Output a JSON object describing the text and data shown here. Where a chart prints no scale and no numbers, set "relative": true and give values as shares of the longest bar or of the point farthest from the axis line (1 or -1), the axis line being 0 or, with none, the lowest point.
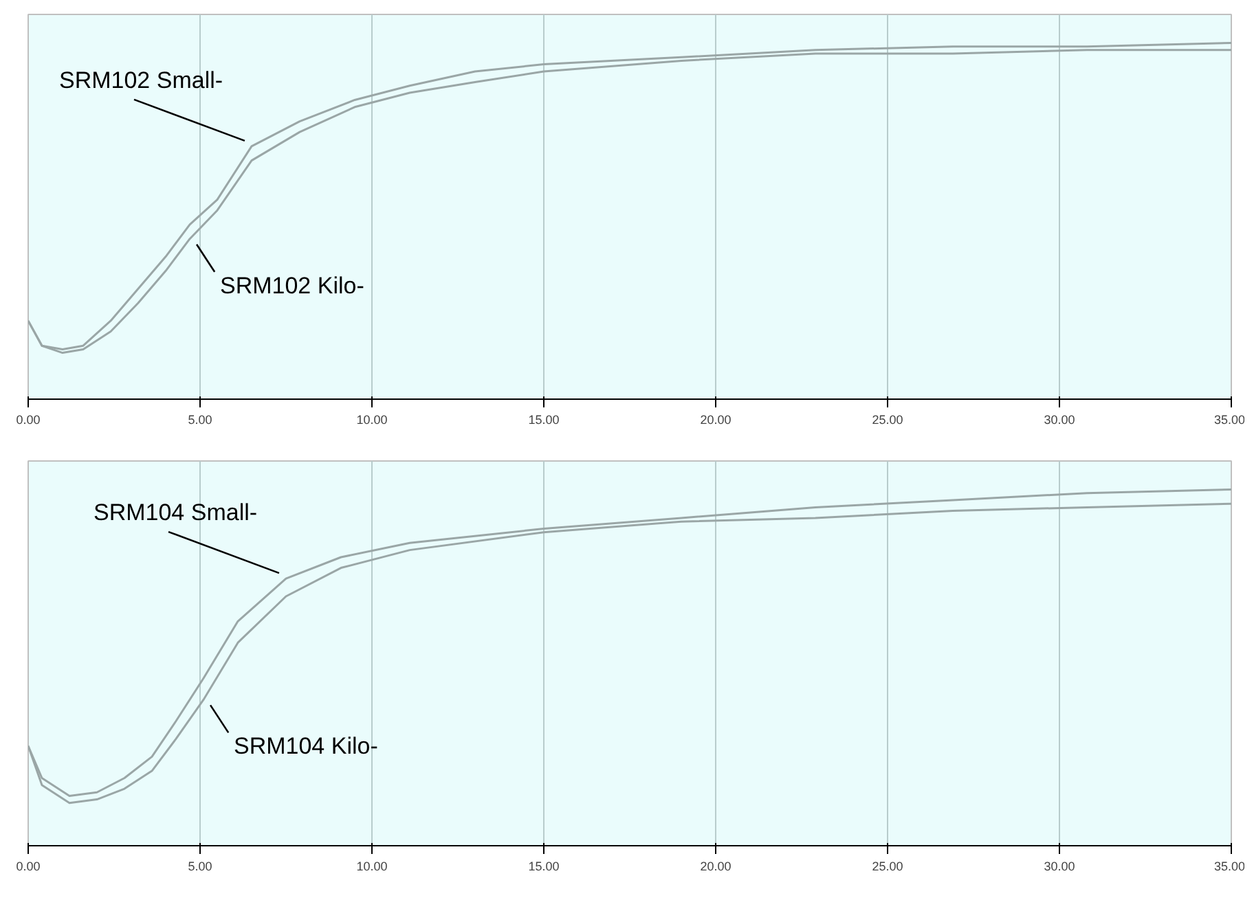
{
  "chart_data": [
    {
      "type": "line",
      "relative": true,
      "grid": "x",
      "marker": "none",
      "line_style": "solid",
      "xlim": [
        0,
        35
      ],
      "xticks": [
        {
          "value": 0,
          "label": "0.00"
        },
        {
          "value": 5,
          "label": "5.00"
        },
        {
          "value": 10,
          "label": "10.00"
        },
        {
          "value": 15,
          "label": "15.00"
        },
        {
          "value": 20,
          "label": "20.00"
        },
        {
          "value": 25,
          "label": "25.00"
        },
        {
          "value": 30,
          "label": "30.00"
        },
        {
          "value": 35,
          "label": "35.00"
        }
      ],
      "x": [
        0,
        0.4,
        1.0,
        1.6,
        2.4,
        3.2,
        4.0,
        4.7,
        5.5,
        6.5,
        7.9,
        9.5,
        11.1,
        13.0,
        15.0,
        19.0,
        22.9,
        26.9,
        30.8,
        35
      ],
      "series": [
        {
          "name": "SRM102 Small-",
          "color": "#9aa6a6",
          "values": [
            0.22,
            0.15,
            0.14,
            0.15,
            0.22,
            0.31,
            0.4,
            0.49,
            0.56,
            0.71,
            0.78,
            0.84,
            0.88,
            0.92,
            0.94,
            0.96,
            0.98,
            0.99,
            0.99,
            1.0
          ]
        },
        {
          "name": "SRM102 Kilo-",
          "color": "#9aa6a6",
          "values": [
            0.22,
            0.15,
            0.13,
            0.14,
            0.19,
            0.27,
            0.36,
            0.45,
            0.53,
            0.67,
            0.75,
            0.82,
            0.86,
            0.89,
            0.92,
            0.95,
            0.97,
            0.97,
            0.98,
            0.98
          ]
        }
      ]
    },
    {
      "type": "line",
      "relative": true,
      "grid": "x",
      "marker": "none",
      "line_style": "solid",
      "xlim": [
        0,
        35
      ],
      "xticks": [
        {
          "value": 0,
          "label": "0.00"
        },
        {
          "value": 5,
          "label": "5.00"
        },
        {
          "value": 10,
          "label": "10.00"
        },
        {
          "value": 15,
          "label": "15.00"
        },
        {
          "value": 20,
          "label": "20.00"
        },
        {
          "value": 25,
          "label": "25.00"
        },
        {
          "value": 30,
          "label": "30.00"
        },
        {
          "value": 35,
          "label": "35.00"
        }
      ],
      "x": [
        0,
        0.4,
        1.2,
        2.0,
        2.8,
        3.6,
        4.3,
        5.1,
        6.1,
        7.5,
        9.1,
        11.1,
        15.0,
        19.0,
        22.9,
        26.9,
        30.8,
        35
      ],
      "series": [
        {
          "name": "SRM104 Small-",
          "color": "#9aa6a6",
          "values": [
            0.28,
            0.19,
            0.14,
            0.15,
            0.19,
            0.25,
            0.35,
            0.47,
            0.63,
            0.75,
            0.81,
            0.85,
            0.89,
            0.92,
            0.95,
            0.97,
            0.99,
            1.0
          ]
        },
        {
          "name": "SRM104 Kilo-",
          "color": "#9aa6a6",
          "values": [
            0.28,
            0.17,
            0.12,
            0.13,
            0.16,
            0.21,
            0.3,
            0.41,
            0.57,
            0.7,
            0.78,
            0.83,
            0.88,
            0.91,
            0.92,
            0.94,
            0.95,
            0.96
          ]
        }
      ]
    }
  ]
}
